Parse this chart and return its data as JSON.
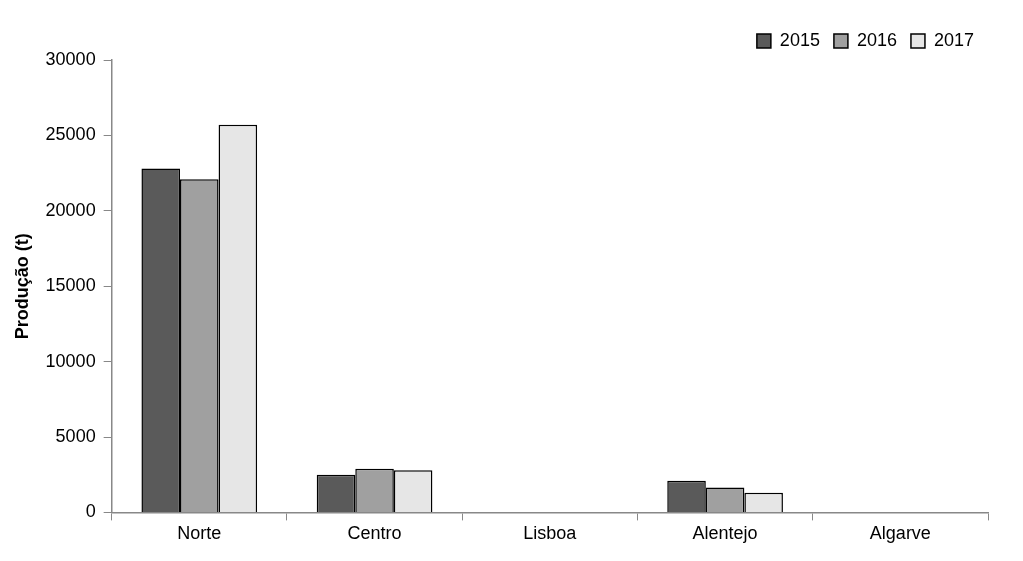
{
  "chart_data": {
    "type": "bar",
    "ylabel": "Produção (t)",
    "categories": [
      "Norte",
      "Centro",
      "Lisboa",
      "Alentejo",
      "Algarve"
    ],
    "series": [
      {
        "name": "2015",
        "color": "#5a5a5a",
        "values": [
          22800,
          2500,
          0,
          2100,
          0
        ]
      },
      {
        "name": "2016",
        "color": "#a0a0a0",
        "values": [
          22100,
          2900,
          0,
          1650,
          0
        ]
      },
      {
        "name": "2017",
        "color": "#e6e6e6",
        "values": [
          25700,
          2800,
          0,
          1300,
          0
        ]
      }
    ],
    "ylim": [
      0,
      30000
    ],
    "yticks": [
      0,
      5000,
      10000,
      15000,
      20000,
      25000,
      30000
    ],
    "grid": false,
    "legend": "top right"
  }
}
